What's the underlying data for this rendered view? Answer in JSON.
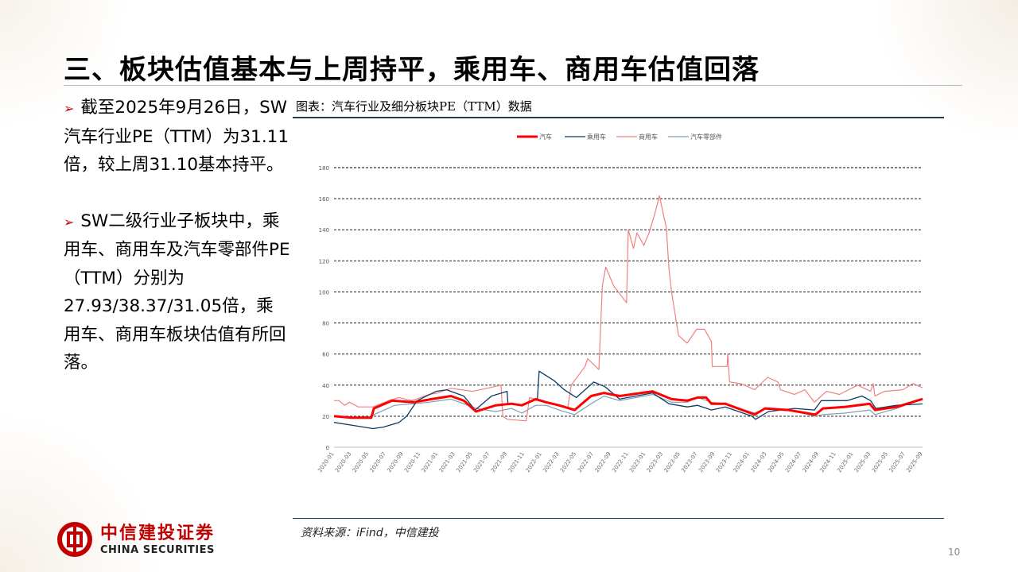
{
  "title": "三、板块估值基本与上周持平，乘用车、商用车估值回落",
  "bullets": [
    "截至2025年9月26日，SW汽车行业PE（TTM）为31.11倍，较上周31.10基本持平。",
    "SW二级行业子板块中，乘用车、商用车及汽车零部件PE（TTM）分别为27.93/38.37/31.05倍，乘用车、商用车板块估值有所回落。"
  ],
  "caption": "图表：汽车行业及细分板块PE（TTM）数据",
  "source": "资料来源：iFind，中信建投",
  "page_number": "10",
  "logo": {
    "cn": "中信建投证券",
    "en": "CHINA SECURITIES"
  },
  "chart_data": {
    "type": "line",
    "title": "",
    "x_unit": "months since 2020-01",
    "ylim": [
      0,
      180
    ],
    "yticks": [
      0,
      20,
      40,
      60,
      80,
      100,
      120,
      140,
      160,
      180
    ],
    "grid": true,
    "legend_position": "top-right",
    "xtick_labels": [
      "2020-01",
      "2020-03",
      "2020-05",
      "2020-07",
      "2020-09",
      "2020-11",
      "2021-01",
      "2021-03",
      "2021-05",
      "2021-07",
      "2021-09",
      "2021-11",
      "2022-01",
      "2022-03",
      "2022-05",
      "2022-07",
      "2022-09",
      "2022-11",
      "2023-01",
      "2023-03",
      "2023-05",
      "2023-07",
      "2023-09",
      "2023-11",
      "2024-01",
      "2024-03",
      "2024-05",
      "2024-07",
      "2024-09",
      "2024-11",
      "2025-01",
      "2025-03",
      "2025-05",
      "2025-07",
      "2025-09"
    ],
    "series": [
      {
        "name": "汽车",
        "color": "#ff0000",
        "width": 3,
        "points": [
          [
            0,
            20
          ],
          [
            2,
            19
          ],
          [
            4.3,
            19
          ],
          [
            4.6,
            25
          ],
          [
            6.7,
            30
          ],
          [
            9.2,
            29
          ],
          [
            11.3,
            31
          ],
          [
            13.5,
            33
          ],
          [
            15,
            30
          ],
          [
            16.4,
            23
          ],
          [
            18.7,
            27
          ],
          [
            20.5,
            28
          ],
          [
            21.7,
            27
          ],
          [
            23.3,
            31
          ],
          [
            24.5,
            29
          ],
          [
            26,
            27
          ],
          [
            27.8,
            24
          ],
          [
            29.7,
            33
          ],
          [
            31.2,
            35
          ],
          [
            33,
            33
          ],
          [
            36.8,
            36
          ],
          [
            39,
            31
          ],
          [
            40.8,
            30
          ],
          [
            42,
            32
          ],
          [
            43,
            32
          ],
          [
            43.6,
            28
          ],
          [
            45.2,
            28
          ],
          [
            48.6,
            21
          ],
          [
            49.8,
            25
          ],
          [
            52.5,
            24
          ],
          [
            55.6,
            21
          ],
          [
            56.5,
            25
          ],
          [
            59,
            26
          ],
          [
            61.9,
            28
          ],
          [
            62.5,
            24
          ],
          [
            65,
            26
          ],
          [
            68,
            31.11
          ]
        ]
      },
      {
        "name": "乘用车",
        "color": "#0b3b66",
        "width": 1.3,
        "points": [
          [
            0,
            16
          ],
          [
            2.3,
            14
          ],
          [
            4.5,
            12
          ],
          [
            5.7,
            13
          ],
          [
            7.5,
            16
          ],
          [
            8.4,
            20
          ],
          [
            9.6,
            30
          ],
          [
            11.8,
            36
          ],
          [
            13,
            37
          ],
          [
            15,
            33
          ],
          [
            16.3,
            24
          ],
          [
            18.2,
            33
          ],
          [
            20,
            36
          ],
          [
            20.1,
            28
          ],
          [
            21.4,
            27
          ],
          [
            23.5,
            31
          ],
          [
            23.7,
            49
          ],
          [
            25.4,
            43
          ],
          [
            26.6,
            37
          ],
          [
            28,
            32
          ],
          [
            30,
            42
          ],
          [
            31.3,
            39
          ],
          [
            33,
            31
          ],
          [
            36.8,
            35
          ],
          [
            38.7,
            28
          ],
          [
            40.8,
            26
          ],
          [
            42,
            27
          ],
          [
            43.6,
            24
          ],
          [
            45.2,
            26
          ],
          [
            48.3,
            20
          ],
          [
            48.7,
            18
          ],
          [
            50.2,
            23
          ],
          [
            53.2,
            25
          ],
          [
            55.5,
            24
          ],
          [
            56.3,
            30
          ],
          [
            59.3,
            30
          ],
          [
            61,
            33
          ],
          [
            62,
            30
          ],
          [
            62.6,
            25
          ],
          [
            65,
            27
          ],
          [
            68,
            27.93
          ]
        ]
      },
      {
        "name": "商用车",
        "color": "#f08080",
        "width": 1.2,
        "points": [
          [
            0,
            30
          ],
          [
            0.6,
            30
          ],
          [
            1.2,
            27
          ],
          [
            1.8,
            29
          ],
          [
            2.8,
            26
          ],
          [
            4.5,
            26
          ],
          [
            6.3,
            30
          ],
          [
            7.5,
            32
          ],
          [
            9,
            30
          ],
          [
            11,
            34
          ],
          [
            12,
            35
          ],
          [
            13.5,
            38
          ],
          [
            16,
            36
          ],
          [
            17.7,
            38
          ],
          [
            19.3,
            40
          ],
          [
            19.5,
            20
          ],
          [
            20,
            18
          ],
          [
            22.2,
            17
          ],
          [
            22.6,
            32
          ],
          [
            23.8,
            30
          ],
          [
            27,
            25
          ],
          [
            27.4,
            40
          ],
          [
            29,
            52
          ],
          [
            29.3,
            57
          ],
          [
            30.6,
            50
          ],
          [
            31,
            104
          ],
          [
            31.4,
            116
          ],
          [
            32.3,
            104
          ],
          [
            33.8,
            93
          ],
          [
            34,
            140
          ],
          [
            34.6,
            128
          ],
          [
            35,
            138
          ],
          [
            35.8,
            130
          ],
          [
            36.4,
            138
          ],
          [
            37,
            149
          ],
          [
            37.6,
            162
          ],
          [
            37.9,
            154
          ],
          [
            38.4,
            141
          ],
          [
            38.7,
            115
          ],
          [
            39,
            100
          ],
          [
            39.8,
            72
          ],
          [
            40.8,
            67
          ],
          [
            41.9,
            76
          ],
          [
            42.8,
            76
          ],
          [
            43.6,
            68
          ],
          [
            43.7,
            52
          ],
          [
            45.4,
            52
          ],
          [
            45.5,
            60
          ],
          [
            45.7,
            42
          ],
          [
            47,
            41
          ],
          [
            48.6,
            37
          ],
          [
            50.1,
            45
          ],
          [
            51.3,
            42
          ],
          [
            51.6,
            37
          ],
          [
            53.2,
            34
          ],
          [
            54.4,
            37
          ],
          [
            55.5,
            29
          ],
          [
            56.9,
            36
          ],
          [
            58.4,
            34
          ],
          [
            60.5,
            40
          ],
          [
            62,
            36
          ],
          [
            62.3,
            41
          ],
          [
            62.5,
            33
          ],
          [
            63.6,
            36
          ],
          [
            65.7,
            37
          ],
          [
            66.9,
            41
          ],
          [
            68,
            38.37
          ]
        ]
      },
      {
        "name": "汽车零部件",
        "color": "#7f9fb5",
        "width": 1.2,
        "points": [
          [
            0,
            20
          ],
          [
            3,
            19
          ],
          [
            4.3,
            19
          ],
          [
            4.6,
            21
          ],
          [
            7,
            27
          ],
          [
            11,
            29
          ],
          [
            13.5,
            31
          ],
          [
            15,
            28
          ],
          [
            16.4,
            25
          ],
          [
            18.7,
            23
          ],
          [
            20.5,
            25
          ],
          [
            21.7,
            22
          ],
          [
            23.3,
            27
          ],
          [
            24.5,
            27
          ],
          [
            26,
            24
          ],
          [
            27.8,
            21
          ],
          [
            29.7,
            28
          ],
          [
            31.2,
            33
          ],
          [
            33,
            30
          ],
          [
            36.8,
            34
          ],
          [
            39,
            29
          ],
          [
            40.8,
            29
          ],
          [
            42,
            32
          ],
          [
            43.6,
            29
          ],
          [
            45.2,
            28
          ],
          [
            48.6,
            22
          ],
          [
            49.8,
            25
          ],
          [
            52.5,
            24
          ],
          [
            55.6,
            20
          ],
          [
            56.5,
            21
          ],
          [
            59,
            22
          ],
          [
            61.9,
            24
          ],
          [
            62.5,
            21
          ],
          [
            65,
            25
          ],
          [
            68,
            31.05
          ]
        ]
      }
    ]
  }
}
